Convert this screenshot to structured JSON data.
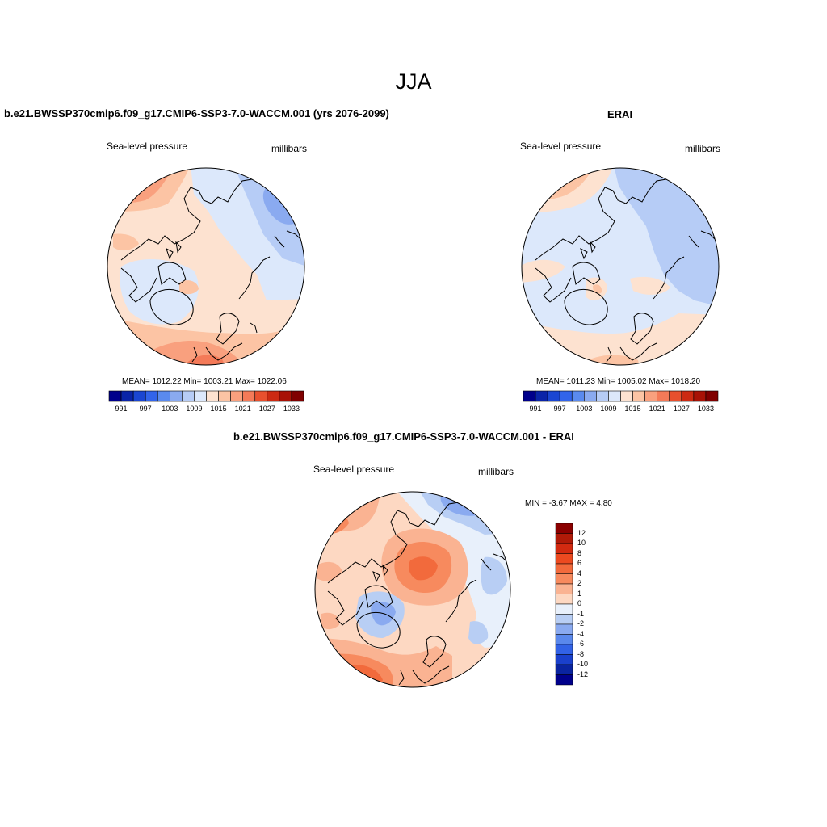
{
  "figure": {
    "title": "JJA",
    "panels": [
      {
        "id": "model",
        "title": "b.e21.BWSSP370cmip6.f09_g17.CMIP6-SSP3-7.0-WACCM.001 (yrs 2076-2099)",
        "variable": "Sea-level pressure",
        "units": "millibars",
        "stats": "MEAN= 1012.22  Min= 1003.21  Max= 1022.06",
        "mean": 1012.22,
        "min": 1003.21,
        "max": 1022.06
      },
      {
        "id": "obs",
        "title": "ERAI",
        "variable": "Sea-level pressure",
        "units": "millibars",
        "stats": "MEAN= 1011.23  Min= 1005.02  Max= 1018.20",
        "mean": 1011.23,
        "min": 1005.02,
        "max": 1018.2
      },
      {
        "id": "diff",
        "title": "b.e21.BWSSP370cmip6.f09_g17.CMIP6-SSP3-7.0-WACCM.001 - ERAI",
        "variable": "Sea-level pressure",
        "units": "millibars",
        "stats": "MIN =  -3.67 MAX =   4.80",
        "min": -3.67,
        "max": 4.8
      }
    ],
    "horizontal_colorbar": {
      "labels": [
        "991",
        "997",
        "1003",
        "1009",
        "1015",
        "1021",
        "1027",
        "1033"
      ],
      "colors": [
        "#00008b",
        "#0a24a8",
        "#1a46d2",
        "#3264ea",
        "#5a8aee",
        "#8aaaf0",
        "#b6ccf6",
        "#dce8fb",
        "#fde2d0",
        "#fcc4a4",
        "#f9a07e",
        "#f47a58",
        "#e8502e",
        "#cc2a12",
        "#a81206",
        "#800000"
      ]
    },
    "vertical_colorbar": {
      "labels": [
        "12",
        "10",
        "8",
        "6",
        "4",
        "2",
        "1",
        "0",
        "-1",
        "-2",
        "-4",
        "-6",
        "-8",
        "-10",
        "-12"
      ],
      "colors": [
        "#8b0000",
        "#b01a08",
        "#d22a10",
        "#ec4a20",
        "#f26a3c",
        "#f78a5e",
        "#fab392",
        "#fdd8c2",
        "#e8f0fb",
        "#b8cef4",
        "#8aaaf0",
        "#5a88ec",
        "#3262e6",
        "#1a40cc",
        "#0a24a0",
        "#00008b"
      ]
    }
  },
  "chart_data": {
    "type": "heatmap",
    "title": "JJA",
    "variable": "Sea-level pressure",
    "units": "millibars",
    "projection": "north polar stereographic",
    "panels": [
      {
        "name": "b.e21.BWSSP370cmip6.f09_g17.CMIP6-SSP3-7.0-WACCM.001 (yrs 2076-2099)",
        "mean": 1012.22,
        "min": 1003.21,
        "max": 1022.06,
        "contour_levels": [
          991,
          994,
          997,
          1000,
          1003,
          1006,
          1009,
          1012,
          1015,
          1018,
          1021,
          1024,
          1027,
          1030,
          1033
        ]
      },
      {
        "name": "ERAI",
        "mean": 1011.23,
        "min": 1005.02,
        "max": 1018.2,
        "contour_levels": [
          991,
          994,
          997,
          1000,
          1003,
          1006,
          1009,
          1012,
          1015,
          1018,
          1021,
          1024,
          1027,
          1030,
          1033
        ]
      },
      {
        "name": "b.e21.BWSSP370cmip6.f09_g17.CMIP6-SSP3-7.0-WACCM.001 - ERAI",
        "min": -3.67,
        "max": 4.8,
        "contour_levels": [
          -12,
          -10,
          -8,
          -6,
          -4,
          -2,
          -1,
          0,
          1,
          2,
          4,
          6,
          8,
          10,
          12
        ]
      }
    ]
  }
}
